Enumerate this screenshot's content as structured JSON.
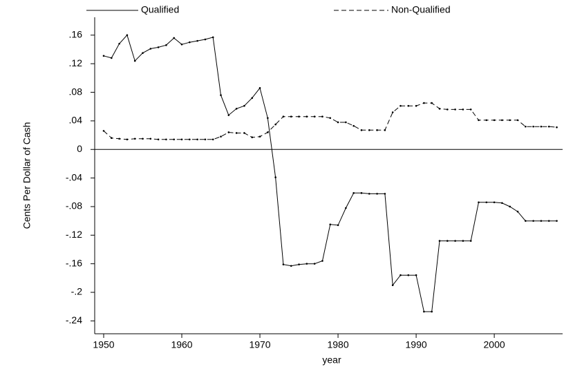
{
  "chart_data": {
    "type": "line",
    "x_label": "year",
    "y_label": "Cents Per Dollar of Cash",
    "x": [
      1950,
      1951,
      1952,
      1953,
      1954,
      1955,
      1956,
      1957,
      1958,
      1959,
      1960,
      1961,
      1962,
      1963,
      1964,
      1965,
      1966,
      1967,
      1968,
      1969,
      1970,
      1971,
      1972,
      1973,
      1974,
      1975,
      1976,
      1977,
      1978,
      1979,
      1980,
      1981,
      1982,
      1983,
      1984,
      1985,
      1986,
      1987,
      1988,
      1989,
      1990,
      1991,
      1992,
      1993,
      1994,
      1995,
      1996,
      1997,
      1998,
      1999,
      2000,
      2001,
      2002,
      2003,
      2004,
      2005,
      2006,
      2007,
      2008
    ],
    "series": [
      {
        "name": "Qualified",
        "color": "#000000",
        "dash": "solid",
        "values": [
          0.131,
          0.128,
          0.148,
          0.16,
          0.124,
          0.135,
          0.141,
          0.143,
          0.146,
          0.156,
          0.147,
          0.15,
          0.152,
          0.154,
          0.157,
          0.076,
          0.048,
          0.057,
          0.061,
          0.072,
          0.086,
          0.044,
          -0.039,
          -0.161,
          -0.163,
          -0.161,
          -0.16,
          -0.16,
          -0.156,
          -0.105,
          -0.106,
          -0.082,
          -0.061,
          -0.061,
          -0.062,
          -0.062,
          -0.062,
          -0.19,
          -0.176,
          -0.176,
          -0.176,
          -0.227,
          -0.227,
          -0.128,
          -0.128,
          -0.128,
          -0.128,
          -0.128,
          -0.074,
          -0.074,
          -0.074,
          -0.075,
          -0.08,
          -0.087,
          -0.1,
          -0.1,
          -0.1,
          -0.1,
          -0.1
        ]
      },
      {
        "name": "Non-Qualified",
        "color": "#000000",
        "dash": "dashed",
        "values": [
          0.026,
          0.016,
          0.015,
          0.014,
          0.015,
          0.015,
          0.015,
          0.014,
          0.014,
          0.014,
          0.014,
          0.014,
          0.014,
          0.014,
          0.014,
          0.018,
          0.024,
          0.023,
          0.023,
          0.017,
          0.018,
          0.024,
          0.035,
          0.046,
          0.046,
          0.046,
          0.046,
          0.046,
          0.046,
          0.044,
          0.038,
          0.038,
          0.033,
          0.027,
          0.027,
          0.027,
          0.027,
          0.052,
          0.061,
          0.061,
          0.061,
          0.065,
          0.065,
          0.057,
          0.056,
          0.056,
          0.056,
          0.056,
          0.041,
          0.041,
          0.041,
          0.041,
          0.041,
          0.041,
          0.032,
          0.032,
          0.032,
          0.032,
          0.031
        ]
      }
    ],
    "xlim": [
      1948.85,
      2008.75
    ],
    "ylim": [
      -0.258,
      0.185
    ],
    "xticks": [
      1950,
      1960,
      1970,
      1980,
      1990,
      2000
    ],
    "yticks": [
      {
        "value": 0.16,
        "label": ".16"
      },
      {
        "value": 0.12,
        "label": ".12"
      },
      {
        "value": 0.08,
        "label": ".08"
      },
      {
        "value": 0.04,
        "label": ".04"
      },
      0,
      {
        "value": -0.04,
        "label": "-.04"
      },
      {
        "value": -0.08,
        "label": "-.08"
      },
      {
        "value": -0.12,
        "label": "-.12"
      },
      {
        "value": -0.16,
        "label": "-.16"
      },
      {
        "value": -0.2,
        "label": "-.2"
      },
      {
        "value": -0.24,
        "label": "-.24"
      }
    ],
    "reference_line": 0,
    "markers": true,
    "legend": "top"
  }
}
